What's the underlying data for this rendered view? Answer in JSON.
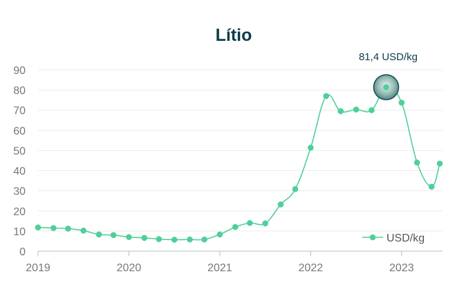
{
  "chart_data": {
    "type": "line",
    "title": "Lítio",
    "xlabel": "",
    "ylabel": "",
    "ylim": [
      0,
      90
    ],
    "yticks": [
      0,
      10,
      20,
      30,
      40,
      50,
      60,
      70,
      80,
      90
    ],
    "xlim": [
      2019,
      2023.45
    ],
    "xticks": [
      2019,
      2020,
      2021,
      2022,
      2023
    ],
    "grid": "horizontal",
    "legend_position": "bottom-right",
    "series": [
      {
        "name": "USD/kg",
        "color": "#4fcf9a",
        "x": [
          2019.0,
          2019.17,
          2019.33,
          2019.5,
          2019.67,
          2019.83,
          2020.0,
          2020.17,
          2020.33,
          2020.5,
          2020.67,
          2020.83,
          2021.0,
          2021.17,
          2021.33,
          2021.5,
          2021.67,
          2021.83,
          2022.0,
          2022.17,
          2022.33,
          2022.5,
          2022.67,
          2022.83,
          2023.0,
          2023.17,
          2023.33,
          2023.42
        ],
        "values": [
          11.8,
          11.5,
          11.2,
          10.2,
          8.3,
          8.0,
          7.0,
          6.6,
          6.0,
          5.7,
          5.8,
          5.8,
          8.3,
          12.0,
          14.0,
          13.8,
          23.2,
          30.8,
          51.4,
          77.0,
          69.5,
          70.3,
          70.0,
          81.4,
          73.7,
          44.0,
          32.0,
          43.5
        ]
      }
    ],
    "annotation": {
      "text": "81,4 USD/kg",
      "x": 2022.83,
      "y": 81.4
    }
  }
}
